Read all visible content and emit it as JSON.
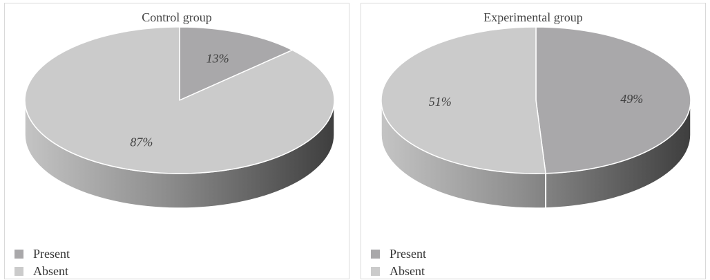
{
  "chart_data": [
    {
      "type": "pie",
      "title": "Control group",
      "categories": [
        "Present",
        "Absent"
      ],
      "values": [
        13,
        87
      ],
      "labels": [
        "13%",
        "87%"
      ],
      "colors": [
        "#a9a8aa",
        "#cbcbcb"
      ],
      "legend_position": "bottom-left",
      "style": "3d"
    },
    {
      "type": "pie",
      "title": "Experimental group",
      "categories": [
        "Present",
        "Absent"
      ],
      "values": [
        49,
        51
      ],
      "labels": [
        "49%",
        "51%"
      ],
      "colors": [
        "#a9a8aa",
        "#cbcbcb"
      ],
      "legend_position": "bottom-left",
      "style": "3d"
    }
  ],
  "legend": {
    "items": [
      "Present",
      "Absent"
    ]
  }
}
